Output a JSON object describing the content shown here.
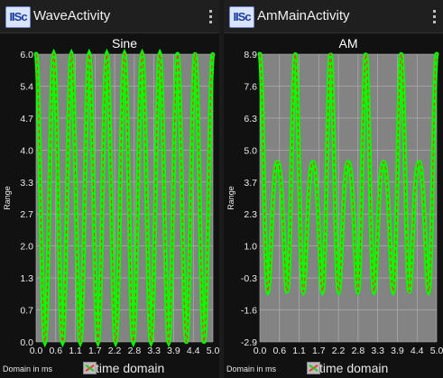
{
  "panels": [
    {
      "app_title": "WaveActivity",
      "app_icon_text": "IISc",
      "domain_label": "Domain in ms",
      "legend_label": "time domain",
      "chart_data": {
        "type": "line",
        "title": "Sine",
        "ylabel": "Range",
        "xlabel": "",
        "xlim": [
          0.0,
          5.0
        ],
        "ylim": [
          0.0,
          6.0
        ],
        "x_ticks": [
          "0.0",
          "0.6",
          "1.1",
          "1.7",
          "2.2",
          "2.8",
          "3.3",
          "3.9",
          "4.4",
          "5.0"
        ],
        "y_ticks": [
          "6.0",
          "5.4",
          "4.7",
          "4.0",
          "3.3",
          "2.7",
          "2.0",
          "1.3",
          "0.7",
          "0.0"
        ],
        "grid": true,
        "legend_position": "bottom",
        "series": [
          {
            "name": "time domain",
            "color": "#00ff00",
            "style": "dotted",
            "function": "sine",
            "offset": 3.0,
            "amplitude": 3.0,
            "cycles_per_ms": 2.0
          }
        ],
        "reference_line": {
          "color": "#ff3333",
          "style": "dashed"
        }
      }
    },
    {
      "app_title": "AmMainActivity",
      "app_icon_text": "IISc",
      "domain_label": "Domain in ms",
      "legend_label": "time domain",
      "chart_data": {
        "type": "line",
        "title": "AM",
        "ylabel": "Range",
        "xlabel": "",
        "xlim": [
          0.0,
          5.0
        ],
        "ylim": [
          -2.9,
          8.9
        ],
        "x_ticks": [
          "0.0",
          "0.6",
          "1.1",
          "1.7",
          "2.2",
          "2.8",
          "3.3",
          "3.9",
          "4.4",
          "5.0"
        ],
        "y_ticks": [
          "8.9",
          "7.6",
          "6.3",
          "5.0",
          "3.7",
          "2.3",
          "1.0",
          "-0.3",
          "-1.6",
          "-2.9"
        ],
        "grid": true,
        "legend_position": "bottom",
        "series": [
          {
            "name": "time domain",
            "color": "#00ff00",
            "style": "dotted",
            "function": "am",
            "offset": 3.0,
            "carrier_cycles_per_ms": 2.0,
            "message_cycles_per_ms": 0.5,
            "max": 8.9,
            "min": -2.9
          }
        ],
        "reference_line": {
          "color": "#ff3333",
          "style": "dashed"
        }
      }
    }
  ]
}
